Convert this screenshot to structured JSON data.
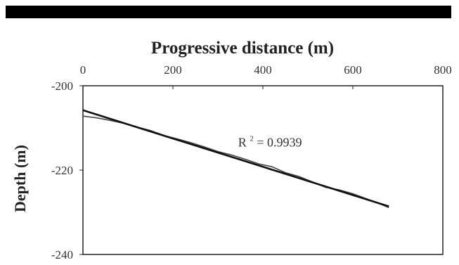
{
  "chart_data": {
    "type": "line",
    "title": "",
    "xlabel": "Progressive distance (m)",
    "ylabel": "Depth (m)",
    "x_axis_position": "top",
    "xlim": [
      0,
      800
    ],
    "ylim": [
      -240,
      -200
    ],
    "x_ticks": [
      "0",
      "200",
      "400",
      "600",
      "800"
    ],
    "y_ticks": [
      "-200",
      "-220",
      "-240"
    ],
    "x_tick_values": [
      0,
      200,
      400,
      600,
      800
    ],
    "y_tick_values": [
      -200,
      -220,
      -240
    ],
    "grid": false,
    "legend": "none",
    "series": [
      {
        "x": [
          0,
          30,
          60,
          90,
          120,
          150,
          180,
          210,
          240,
          270,
          300,
          330,
          360,
          390,
          420,
          450,
          480,
          510,
          540,
          570,
          600,
          630,
          660,
          680
        ],
        "y": [
          -207.2,
          -207.6,
          -208.2,
          -208.9,
          -209.8,
          -210.6,
          -211.8,
          -212.6,
          -213.5,
          -214.5,
          -215.6,
          -216.4,
          -217.4,
          -218.5,
          -219.2,
          -220.6,
          -221.5,
          -222.8,
          -224.1,
          -224.7,
          -225.6,
          -226.8,
          -228.0,
          -228.9
        ]
      },
      {
        "type": "trendline",
        "x": [
          0,
          680
        ],
        "y": [
          -205.8,
          -228.6
        ]
      }
    ],
    "annotations": [
      {
        "text": "R",
        "superscript": "2",
        "rest": " = 0.9939"
      }
    ],
    "colors": {
      "data": "#444444",
      "trend": "#111111",
      "frame": "#222222"
    }
  }
}
